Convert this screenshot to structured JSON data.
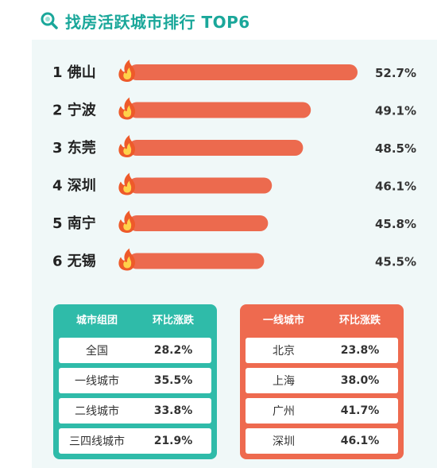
{
  "title": "找房活跃城市排行 TOP6",
  "chart_data": {
    "type": "bar",
    "orientation": "horizontal",
    "title": "找房活跃城市排行 TOP6",
    "categories": [
      "1 佛山",
      "2 宁波",
      "3 东莞",
      "4 深圳",
      "5 南宁",
      "6 无锡"
    ],
    "values": [
      52.7,
      49.1,
      48.5,
      46.1,
      45.8,
      45.5
    ],
    "value_labels": [
      "52.7%",
      "49.1%",
      "48.5%",
      "46.1%",
      "45.8%",
      "45.5%"
    ],
    "unit": "%",
    "bar_color": "#ec6a4e",
    "icon": "flame-icon",
    "grid": false
  },
  "table_groups": {
    "headers": [
      "城市组团",
      "环比涨跌"
    ],
    "rows": [
      {
        "name": "全国",
        "value": "28.2%"
      },
      {
        "name": "一线城市",
        "value": "35.5%"
      },
      {
        "name": "二线城市",
        "value": "33.8%"
      },
      {
        "name": "三四线城市",
        "value": "21.9%"
      }
    ],
    "color": "#2fbba9"
  },
  "table_tier1": {
    "headers": [
      "一线城市",
      "环比涨跌"
    ],
    "rows": [
      {
        "name": "北京",
        "value": "23.8%"
      },
      {
        "name": "上海",
        "value": "38.0%"
      },
      {
        "name": "广州",
        "value": "41.7%"
      },
      {
        "name": "深圳",
        "value": "46.1%"
      }
    ],
    "color": "#ee6a4f"
  }
}
